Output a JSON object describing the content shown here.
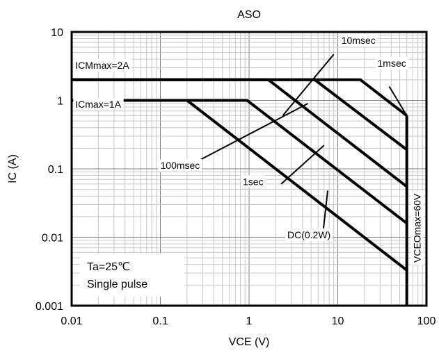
{
  "chart_data": {
    "type": "line",
    "title": "ASO",
    "xlabel": "VCE (V)",
    "ylabel": "IC (A)",
    "x_scale": "log",
    "y_scale": "log",
    "xlim": [
      0.01,
      100
    ],
    "ylim": [
      0.001,
      10
    ],
    "grid": true,
    "x_ticks": [
      {
        "value": 0.01,
        "label": "0.01"
      },
      {
        "value": 0.1,
        "label": "0.1"
      },
      {
        "value": 1,
        "label": "1"
      },
      {
        "value": 10,
        "label": "10"
      },
      {
        "value": 100,
        "label": "100"
      }
    ],
    "y_ticks": [
      {
        "value": 0.001,
        "label": "0.001"
      },
      {
        "value": 0.01,
        "label": "0.01"
      },
      {
        "value": 0.1,
        "label": "0.1"
      },
      {
        "value": 1,
        "label": "1"
      },
      {
        "value": 10,
        "label": "10"
      }
    ],
    "series": [
      {
        "name": "1msec",
        "points": [
          [
            0.01,
            2
          ],
          [
            18,
            2
          ],
          [
            60,
            0.6
          ]
        ]
      },
      {
        "name": "10msec",
        "points": [
          [
            0.01,
            2
          ],
          [
            5.5,
            2
          ],
          [
            60,
            0.19
          ]
        ]
      },
      {
        "name": "100msec",
        "points": [
          [
            0.01,
            2
          ],
          [
            1.65,
            2
          ],
          [
            60,
            0.055
          ]
        ]
      },
      {
        "name": "1sec",
        "points": [
          [
            0.01,
            1
          ],
          [
            0.95,
            1
          ],
          [
            60,
            0.016
          ]
        ]
      },
      {
        "name": "DC(0.2W)",
        "points": [
          [
            0.01,
            1
          ],
          [
            0.2,
            1
          ],
          [
            60,
            0.0033
          ]
        ]
      },
      {
        "name": "VCEOmax=60V",
        "points": [
          [
            60,
            0.001
          ],
          [
            60,
            0.6
          ]
        ]
      }
    ],
    "annotations": [
      {
        "id": "icm",
        "text": "ICMmax=2A",
        "x": 0.011,
        "y": 2.9
      },
      {
        "id": "ic",
        "text": "ICmax=1A",
        "x": 0.011,
        "y": 0.78
      },
      {
        "id": "ms10",
        "text": "10msec",
        "x": 11,
        "y": 6.7,
        "leader": [
          [
            9,
            4.7
          ],
          [
            2.4,
            0.6
          ]
        ]
      },
      {
        "id": "ms1",
        "text": "1msec",
        "x": 28,
        "y": 3.1,
        "leader": [
          [
            38,
            1.6
          ],
          [
            60,
            0.6
          ]
        ]
      },
      {
        "id": "ms100",
        "text": "100msec",
        "x": 0.1,
        "y": 0.1,
        "leader": [
          [
            0.28,
            0.135
          ],
          [
            4.6,
            0.9
          ]
        ]
      },
      {
        "id": "s1",
        "text": "1sec",
        "x": 0.85,
        "y": 0.058,
        "leader": [
          [
            2.3,
            0.06
          ],
          [
            7,
            0.22
          ]
        ]
      },
      {
        "id": "dc",
        "text": "DC(0.2W)",
        "x": 2.7,
        "y": 0.0097,
        "leader": [
          [
            6.9,
            0.0135
          ],
          [
            7.7,
            0.048
          ]
        ]
      },
      {
        "id": "vceo",
        "text": "VCEOmax=60V"
      }
    ],
    "notes": [
      "Ta=25℃",
      "Single pulse"
    ]
  }
}
